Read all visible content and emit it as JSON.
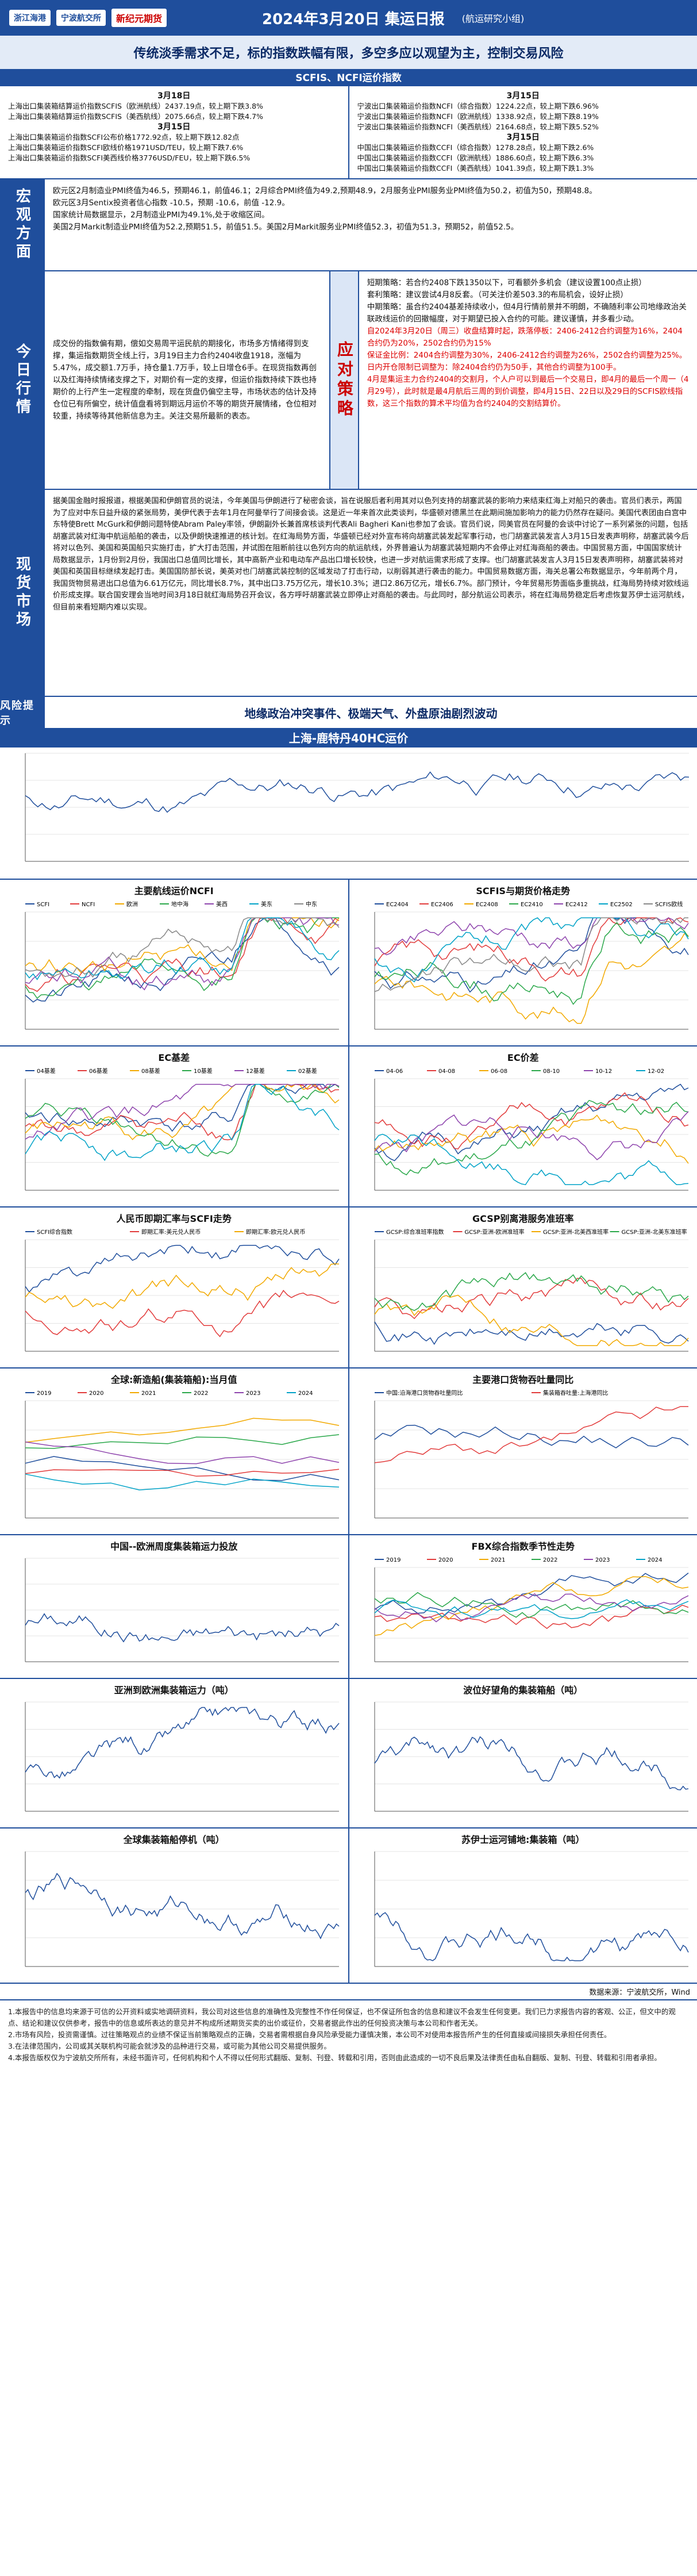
{
  "header": {
    "logo1": "浙江海港",
    "logo2": "宁波航交所",
    "logo3": "新纪元期货",
    "title": "2024年3月20日 集运日报",
    "sub": "(航运研究小组)"
  },
  "headline": "传统淡季需求不足，标的指数跌幅有限，多空多应以观望为主，控制交易风险",
  "scfis_band": "SCFIS、NCFI运价指数",
  "scfis_left": {
    "d1": "3月18日",
    "l1": "上海出口集装箱结算运价指数SCFIS（欧洲航线）2437.19点，较上期下跌3.8%",
    "l2": "上海出口集装箱结算运价指数SCFIS（美西航线）2075.66点，较上期下跌4.7%",
    "d2": "3月15日",
    "l3": "上海出口集装箱运价指数SCFI公布价格1772.92点，较上期下跌12.82点",
    "l4": "上海出口集装箱运价指数SCFI欧线价格1971USD/TEU，较上期下跌7.6%",
    "l5": "上海出口集装箱运价指数SCFI美西线价格3776USD/FEU，较上期下跌6.5%"
  },
  "scfis_right": {
    "d1": "3月15日",
    "l1": "宁波出口集装箱运价指数NCFI（综合指数）1224.22点，较上期下跌6.96%",
    "l2": "宁波出口集装箱运价指数NCFI（欧洲航线）1338.92点，较上期下跌8.19%",
    "l3": "宁波出口集装箱运价指数NCFI（美西航线）2164.68点，较上期下跌5.52%",
    "d2": "3月15日",
    "l4": "中国出口集装箱运价指数CCFI（综合指数）1278.28点，较上期下跌2.6%",
    "l5": "中国出口集装箱运价指数CCFI（欧洲航线）1886.60点，较上期下跌6.3%",
    "l6": "中国出口集装箱运价指数CCFI（美西航线）1041.39点，较上期下跌1.3%"
  },
  "macro": {
    "label": "宏观方面",
    "p1": "欧元区2月制造业PMI终值为46.5，预期46.1，前值46.1；2月综合PMI终值为49.2,预期48.9，2月服务业PMI服务业PMI终值为50.2，初值为50，预期48.8。",
    "p2": "欧元区3月Sentix投资者信心指数 -10.5，预期 -10.6，前值 -12.9。",
    "p3": "国家统计局数据显示，2月制造业PMI为49.1%,处于收缩区间。",
    "p4": "美国2月Markit制造业PMI终值为52.2,预期51.5，前值51.5。美国2月Markit服务业PMI终值52.3，初值为51.3，预期52，前值52.5。"
  },
  "today": {
    "label": "今日行情",
    "left": "成交份的指数偏有期，偿如交易周平运民航的期接化，市场多方情绪得到支撑，集运指数期货全线上行，3月19日主力合约2404收盘1918，涨幅为5.47%，成交额1.7万手，持仓量1.7万手，较上日增仓6手。在现货指数再创以及红海持续情绪支撑之下，对期价有一定的支撑，但运价指数持续下跌也持期价的上行产生一定程度的牵制，现在货盘仍偏空主导，市场状态的估计及持仓位已有所偏空，统计值盘看将到期远月运价不等的期货开展情绪，仓位相对较重，持续等待其他新信息为主。关注交易所最新的表态。",
    "mid": "应对策略",
    "short": "短期策略：若合约2408下跌1350以下，可看额外多机会（建议设置100点止损）",
    "arb": "套利策略：建议尝试4月8反套。（可关注价差503.3的布局机会，设好止损）",
    "mid_term": "中期策略：虽合约2404基差持续收小，但4月行情前景并不明朗，不确随利率公司地缘政治关联政线运价的回撤幅度，对于期望已投入合约的可能。建议谨慎，并多看少动。",
    "r1": "自2024年3月20日（周三）收盘结算时起，跌落停板：2406-2412合约调整为16%，2404合约仍为20%，2502合约仍为15%",
    "r2": "保证金比例：2404合约调整为30%，2406-2412合约调整为26%，2502合约调整为25%。",
    "r3": "日内开仓限制已调整为：除2404合约仍为50手，其他合约调整为100手。",
    "r4": "4月是集运主力合约2404的交割月，个人户可以到最后一个交易日，即4月的最后一个周一（4月29号），此时就是最4月航后三周的到价调整，即4月15日、22日以及29日的SCFIS欧线指数，这三个指数的算术平均值为合约2404的交割结算价。"
  },
  "spot": {
    "label": "现货市场",
    "text": "据美国金融时报报道，根据美国和伊朗官员的说法，今年美国与伊朗进行了秘密会谈，旨在说服后者利用其对以色列支持的胡塞武装的影响力来结束红海上对船只的袭击。官员们表示，两国为了应对中东日益升级的紧张局势，美伊代表于去年1月在阿曼举行了间接会谈。这是近一年来首次此类谈判，华盛顿对德黑兰在此期间施加影响力的能力仍然存在疑问。美国代表团由白宫中东特使Brett McGurk和伊朗问题特使Abram Paley率领，伊朗副外长兼首席核谈判代表Ali Bagheri Kani也参加了会谈。官员们说，同美官员在阿曼的会谈中讨论了一系列紧张的问题，包括胡塞武装对红海中航运船舶的袭击，以及伊朗快速推进的核计划。在红海局势方面，华盛顿已经对外宣布将向胡塞武装发起军事行动，也门胡塞武装发言人3月15日发表声明称，胡塞武装今后将对以色列、美国和英国船只实施打击，扩大打击范围，并试图在阻断前往以色列方向的航运航线，外界普遍认为胡塞武装短期内不会停止对红海商船的袭击。中国贸易方面，中国国家统计局数据显示，1月份到2月份，我国出口总值同比增长，其中高新产业和电动车产品出口增长较快，也进一步对航运需求形成了支撑。也门胡塞武装发言人3月15日发表声明称，胡塞武装将对美国和英国目标继续发起打击。美国国防部长说，美英对也门胡塞武装控制的区域发动了打击行动，以削弱其进行袭击的能力。中国贸易数据方面，海关总署公布数据显示，今年前两个月，我国货物贸易进出口总值为6.61万亿元，同比增长8.7%，其中出口3.75万亿元，增长10.3%；进口2.86万亿元，增长6.7%。部门预计，今年贸易形势面临多重挑战，红海局势持续对欧线运价形成支撑。联合国安理会当地时间3月18日就红海局势召开会议，各方呼吁胡塞武装立即停止对商船的袭击。与此同时，部分航运公司表示，将在红海局势稳定后考虑恢复苏伊士运河航线，但目前来看短期内难以实现。"
  },
  "risk": {
    "label": "风险提示",
    "text": "地缘政治冲突事件、极端天气、外盘原油剧烈波动"
  },
  "chart_band": "上海-鹿特丹40HC运价",
  "charts": {
    "top": {
      "title": "",
      "type": "line"
    },
    "c1": {
      "title": "主要航线运价NCFI",
      "legend": [
        "SCFI",
        "NCFI",
        "欧洲",
        "地中海",
        "美西",
        "美东",
        "中东"
      ]
    },
    "c2": {
      "title": "SCFIS与期货价格走势",
      "legend": [
        "EC2404",
        "EC2406",
        "EC2408",
        "EC2410",
        "EC2412",
        "EC2502",
        "SCFIS欧线"
      ]
    },
    "c3": {
      "title": "EC基差",
      "legend": [
        "04基差",
        "06基差",
        "08基差",
        "10基差",
        "12基差",
        "02基差"
      ]
    },
    "c4": {
      "title": "EC价差",
      "legend": [
        "04-06",
        "04-08",
        "06-08",
        "08-10",
        "10-12",
        "12-02"
      ]
    },
    "c5": {
      "title": "人民币即期汇率与SCFI走势",
      "legend": [
        "SCFI综合指数",
        "即期汇率:美元兑人民币",
        "即期汇率:欧元兑人民币"
      ]
    },
    "c6": {
      "title": "GCSP别离港服务准班率",
      "legend": [
        "GCSP:综合准班率指数",
        "GCSP:亚洲-欧洲准班率",
        "GCSP:亚洲-北美西准班率",
        "GCSP:亚洲-北美东准班率"
      ]
    },
    "c7": {
      "title": "全球:新造船(集装箱船):当月值",
      "legend": [
        "2019",
        "2020",
        "2021",
        "2022",
        "2023",
        "2024"
      ]
    },
    "c8": {
      "title": "主要港口货物吞吐量同比",
      "legend": [
        "中国:沿海港口货物吞吐量同比",
        "集装箱吞吐量:上海港同比"
      ]
    },
    "c9": {
      "title": "中国--欧洲周度集装箱运力投放",
      "legend": []
    },
    "c10": {
      "title": "FBX综合指数季节性走势",
      "legend": [
        "2019",
        "2020",
        "2021",
        "2022",
        "2023",
        "2024"
      ]
    },
    "c11": {
      "title": "亚洲到欧洲集装箱运力（吨）",
      "legend": []
    },
    "c12": {
      "title": "波位好望角的集装箱船（吨）",
      "legend": []
    },
    "c13": {
      "title": "全球集装箱船停机（吨）",
      "legend": []
    },
    "c14": {
      "title": "苏伊士运河铺地:集装箱（吨）",
      "legend": []
    }
  },
  "source": "数据来源：宁波航交所，Wind",
  "disclaimer": {
    "p1": "1.本报告中的信息均来源于可信的公开资料或实地调研资料，我公司对这些信息的准确性及完整性不作任何保证，也不保证所包含的信息和建议不会发生任何变更。我们已力求报告内容的客观、公正，但文中的观点、结论和建议仅供参考，报告中的信息或所表达的意见并不构成所述期货买卖的出价或征价，交易者据此作出的任何投资决策与本公司和作者无关。",
    "p2": "2.市场有风险，投资需谨慎。过往策略观点的业绩不保证当前策略观点的正确，交易者需根据自身风险承受能力谨慎决策，本公司不对使用本报告所产生的任何直接或间接损失承担任何责任。",
    "p3": "3.在法律范围内，公司或其关联机构可能会就涉及的品种进行交易，或可能为其他公司交易提供服务。",
    "p4": "4.本报告版权仅为宁波航交所所有，未经书面许可，任何机构和个人不得以任何形式翻版、复制、刊登、转载和引用，否则由此造成的一切不良后果及法律责任由私自翻版、复制、刊登、转载和引用者承担。"
  }
}
